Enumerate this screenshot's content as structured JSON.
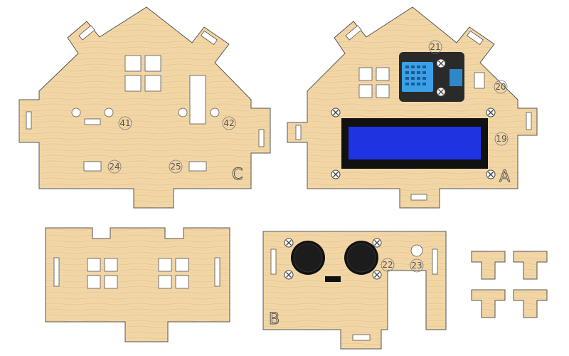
{
  "colors": {
    "wood": "#f2d6a6",
    "wood_grain": "#e3bf85",
    "outline": "#555555",
    "lcd_frame": "#111111",
    "lcd_screen": "#1f33e0",
    "sensor_board": "#2a2a2a",
    "sensor_grille": "#3aa0e8",
    "sensor_connector": "#2f86c9",
    "ultrasonic": "#111111"
  },
  "panels": {
    "c": {
      "letter": "C",
      "parts": [
        "41",
        "42",
        "24",
        "25"
      ]
    },
    "a": {
      "letter": "A",
      "parts": [
        "21",
        "20",
        "19"
      ]
    },
    "b": {
      "letter": "B",
      "parts": [
        "22",
        "23"
      ]
    }
  },
  "icons": {
    "screw": "screw-icon",
    "window": "window-icon"
  }
}
